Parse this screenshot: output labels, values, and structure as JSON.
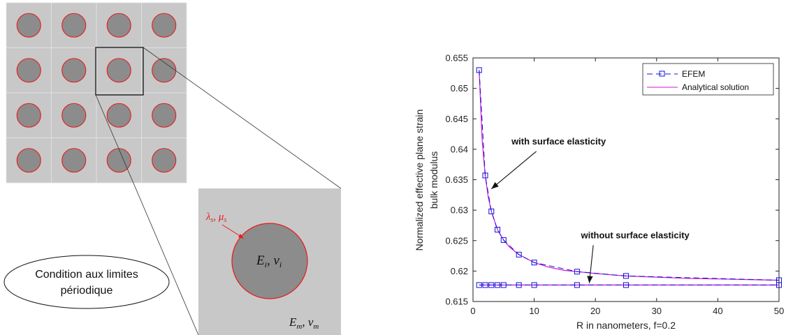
{
  "left_figure": {
    "grid_rows": 4,
    "grid_cols": 4,
    "colors": {
      "matrix": "#c8c8c8",
      "inclusion": "#8c8c8c",
      "interface": "#e8191c",
      "frame": "#111111"
    },
    "zoom": {
      "interface_label": "λ_s, μ_s",
      "interface_label_parts": {
        "a": "λ",
        "a_sub": "s",
        "sep": ", ",
        "b": "μ",
        "b_sub": "s"
      },
      "inclusion_label_parts": {
        "a": "E",
        "a_sub": "i",
        "sep": ", ",
        "b": "ν",
        "b_sub": "i"
      },
      "matrix_label_parts": {
        "a": "E",
        "a_sub": "m",
        "sep": ", ",
        "b": "ν",
        "b_sub": "m"
      }
    },
    "boundary_condition": {
      "line1": "Condition aux limites",
      "line2": "périodique"
    }
  },
  "chart_data": {
    "type": "line",
    "xlabel": "R in nanometers, f=0.2",
    "ylabel_line1": "Normalized effective plane strain",
    "ylabel_line2": "bulk modulus",
    "xlim": [
      0,
      50
    ],
    "ylim": [
      0.615,
      0.655
    ],
    "xticks": [
      0,
      10,
      20,
      30,
      40,
      50
    ],
    "yticks": [
      0.615,
      0.62,
      0.625,
      0.63,
      0.635,
      0.64,
      0.645,
      0.65,
      0.655
    ],
    "grid": false,
    "legend_position": "top-right",
    "legend": [
      "EFEM",
      "Analytical solution"
    ],
    "colors": {
      "efem": "#1010d8",
      "analytical": "#d015d0"
    },
    "series": [
      {
        "name": "EFEM",
        "group": "with surface elasticity",
        "style": "dashed-square",
        "x": [
          1,
          2,
          3,
          4,
          5,
          7.5,
          10,
          17,
          25,
          50
        ],
        "y": [
          0.653,
          0.6357,
          0.6298,
          0.6268,
          0.6251,
          0.6227,
          0.6214,
          0.6199,
          0.6192,
          0.6185
        ]
      },
      {
        "name": "Analytical solution",
        "group": "with surface elasticity",
        "style": "solid",
        "x": [
          1,
          1.5,
          2,
          2.5,
          3,
          4,
          5,
          6,
          7.5,
          10,
          12.5,
          15,
          17,
          20,
          25,
          30,
          35,
          40,
          45,
          50
        ],
        "y": [
          0.653,
          0.6415,
          0.6357,
          0.6321,
          0.6298,
          0.6268,
          0.6251,
          0.6239,
          0.6227,
          0.6214,
          0.6206,
          0.6201,
          0.6199,
          0.6196,
          0.6192,
          0.619,
          0.6188,
          0.6187,
          0.6186,
          0.6185
        ]
      },
      {
        "name": "EFEM",
        "group": "without surface elasticity",
        "style": "dashed-square",
        "x": [
          1,
          2,
          3,
          4,
          5,
          7.5,
          10,
          17,
          25,
          50
        ],
        "y": [
          0.6177,
          0.6177,
          0.6177,
          0.6177,
          0.6177,
          0.6177,
          0.6177,
          0.6177,
          0.6177,
          0.6177
        ]
      },
      {
        "name": "Analytical solution",
        "group": "without surface elasticity",
        "style": "solid",
        "x": [
          1,
          50
        ],
        "y": [
          0.6177,
          0.6177
        ]
      }
    ],
    "annotations": [
      {
        "text": "with surface elasticity",
        "text_at": [
          14,
          0.6408
        ],
        "arrow_to": [
          3,
          0.6335
        ]
      },
      {
        "text": "without surface elasticity",
        "text_at": [
          26.5,
          0.6254
        ],
        "arrow_to": [
          19,
          0.618
        ]
      }
    ]
  }
}
